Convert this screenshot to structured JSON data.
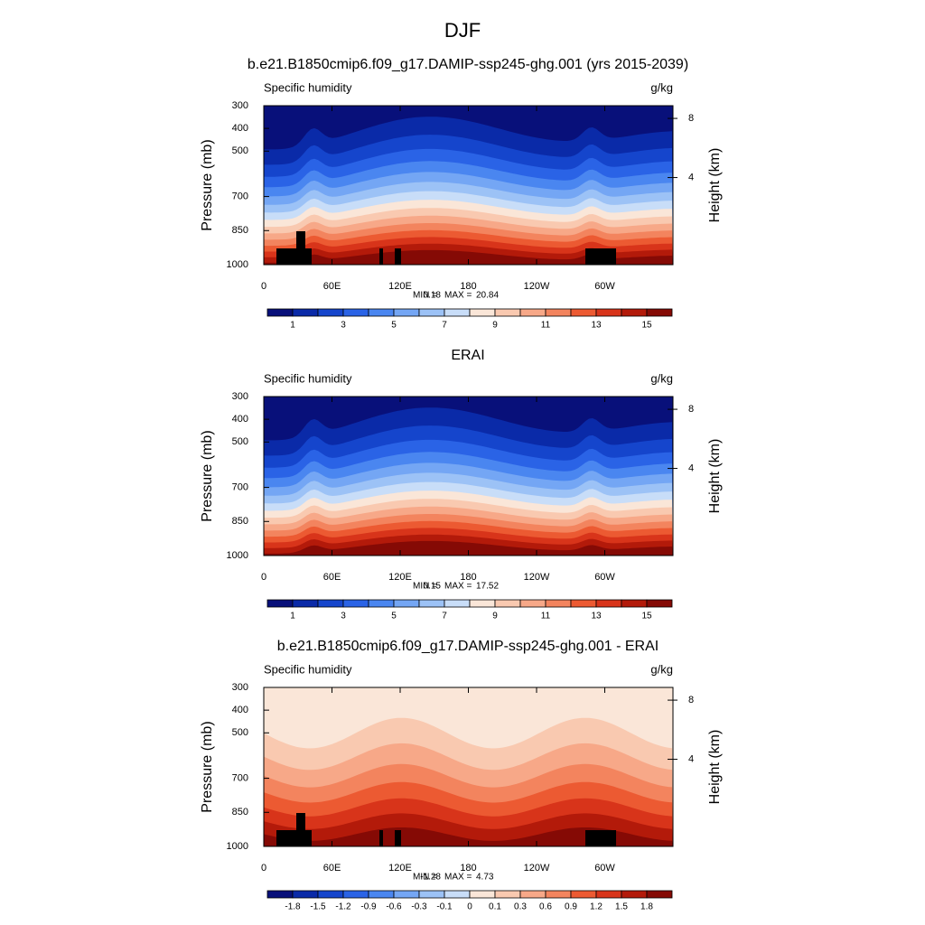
{
  "title": "DJF",
  "chart_data": [
    {
      "type": "contour",
      "title": "b.e21.B1850cmip6.f09_g17.DAMIP-ssp245-ghg.001 (yrs 2015-2039)",
      "left_label": "Specific humidity",
      "right_label": "g/kg",
      "ylabel": "Pressure (mb)",
      "y2label": "Height (km)",
      "xlim": [
        0,
        360
      ],
      "xticks": [
        0,
        {
          "value": 60,
          "label": "60E"
        },
        {
          "value": 120,
          "label": "120E"
        },
        180,
        {
          "value": 240,
          "label": "120W"
        },
        {
          "value": 300,
          "label": "60W"
        }
      ],
      "ylim": [
        1000,
        300
      ],
      "yticks": [
        300,
        400,
        500,
        700,
        850,
        1000
      ],
      "y2ticks": [
        8,
        4
      ],
      "stats": {
        "min_label": "MIN =",
        "min": 0.18,
        "max_label": "MAX =",
        "max": 20.84
      },
      "colorbar": {
        "levels": [
          1,
          2,
          3,
          4,
          5,
          6,
          7,
          8,
          9,
          10,
          11,
          12,
          13,
          14,
          15
        ],
        "label_every": 2,
        "colors": [
          "#08107a",
          "#0a2aa8",
          "#1545cc",
          "#2a63e6",
          "#4a86f0",
          "#74a6f4",
          "#9cc2f6",
          "#c8ddf8",
          "#fae6d8",
          "#f9c9b0",
          "#f7a888",
          "#f3845e",
          "#ec5a32",
          "#d8341a",
          "#b31a0a",
          "#850a05"
        ]
      }
    },
    {
      "type": "contour",
      "title": "ERAI",
      "left_label": "Specific humidity",
      "right_label": "g/kg",
      "ylabel": "Pressure (mb)",
      "y2label": "Height (km)",
      "xlim": [
        0,
        360
      ],
      "xticks": [
        0,
        {
          "value": 60,
          "label": "60E"
        },
        {
          "value": 120,
          "label": "120E"
        },
        180,
        {
          "value": 240,
          "label": "120W"
        },
        {
          "value": 300,
          "label": "60W"
        }
      ],
      "ylim": [
        1000,
        300
      ],
      "yticks": [
        300,
        400,
        500,
        700,
        850,
        1000
      ],
      "y2ticks": [
        8,
        4
      ],
      "stats": {
        "min_label": "MIN =",
        "min": 0.15,
        "max_label": "MAX =",
        "max": 17.52
      },
      "colorbar": {
        "levels": [
          1,
          2,
          3,
          4,
          5,
          6,
          7,
          8,
          9,
          10,
          11,
          12,
          13,
          14,
          15
        ],
        "label_every": 2,
        "colors": [
          "#08107a",
          "#0a2aa8",
          "#1545cc",
          "#2a63e6",
          "#4a86f0",
          "#74a6f4",
          "#9cc2f6",
          "#c8ddf8",
          "#fae6d8",
          "#f9c9b0",
          "#f7a888",
          "#f3845e",
          "#ec5a32",
          "#d8341a",
          "#b31a0a",
          "#850a05"
        ]
      }
    },
    {
      "type": "contour",
      "title": "b.e21.B1850cmip6.f09_g17.DAMIP-ssp245-ghg.001 - ERAI",
      "left_label": "Specific humidity",
      "right_label": "g/kg",
      "ylabel": "Pressure (mb)",
      "y2label": "Height (km)",
      "xlim": [
        0,
        360
      ],
      "xticks": [
        0,
        {
          "value": 60,
          "label": "60E"
        },
        {
          "value": 120,
          "label": "120E"
        },
        180,
        {
          "value": 240,
          "label": "120W"
        },
        {
          "value": 300,
          "label": "60W"
        }
      ],
      "ylim": [
        1000,
        300
      ],
      "yticks": [
        300,
        400,
        500,
        700,
        850,
        1000
      ],
      "y2ticks": [
        8,
        4
      ],
      "stats": {
        "min_label": "MIN =",
        "min": -1.28,
        "max_label": "MAX =",
        "max": 4.73
      },
      "colorbar": {
        "levels": [
          -1.8,
          -1.5,
          -1.2,
          -0.9,
          -0.6,
          -0.3,
          -0.1,
          0,
          0.1,
          0.3,
          0.6,
          0.9,
          1.2,
          1.5,
          1.8
        ],
        "label_every": 1,
        "colors": [
          "#08107a",
          "#0a2aa8",
          "#1545cc",
          "#2a63e6",
          "#4a86f0",
          "#74a6f4",
          "#9cc2f6",
          "#c8ddf8",
          "#fae6d8",
          "#f9c9b0",
          "#f7a888",
          "#f3845e",
          "#ec5a32",
          "#d8341a",
          "#b31a0a",
          "#850a05"
        ]
      }
    }
  ]
}
